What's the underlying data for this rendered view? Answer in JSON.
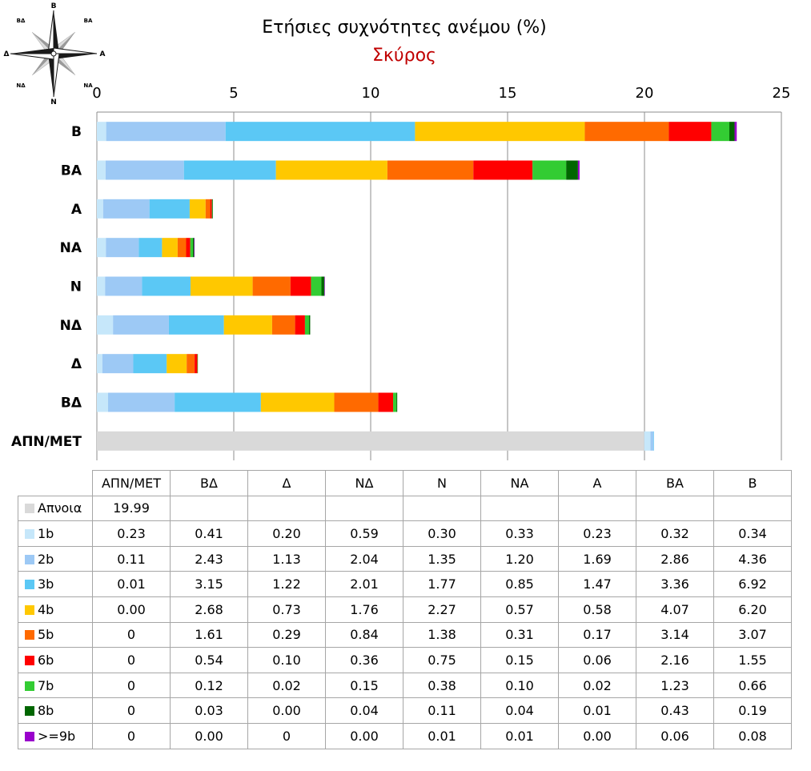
{
  "chart_data": {
    "type": "bar",
    "orientation": "horizontal",
    "stacked": true,
    "title": "Ετήσιες συχνότητες ανέμου (%)",
    "subtitle": "Σκύρος",
    "x_ticks": [
      "0",
      "5",
      "10",
      "15",
      "20",
      "25"
    ],
    "xlim": [
      0,
      25
    ],
    "grid": true,
    "categories": [
      "ΑΠΝ/ΜΕΤ",
      "ΒΔ",
      "Δ",
      "ΝΔ",
      "Ν",
      "ΝΑ",
      "Α",
      "ΒΑ",
      "Β"
    ],
    "series": [
      {
        "name": "Απνοια",
        "color": "#d9d9d9",
        "values": [
          19.99,
          null,
          null,
          null,
          null,
          null,
          null,
          null,
          null
        ],
        "labels": [
          "19.99",
          "",
          "",
          "",
          "",
          "",
          "",
          "",
          ""
        ]
      },
      {
        "name": "1b",
        "color": "#c6e7fa",
        "values": [
          0.23,
          0.41,
          0.2,
          0.59,
          0.3,
          0.33,
          0.23,
          0.32,
          0.34
        ],
        "labels": [
          "0.23",
          "0.41",
          "0.20",
          "0.59",
          "0.30",
          "0.33",
          "0.23",
          "0.32",
          "0.34"
        ]
      },
      {
        "name": "2b",
        "color": "#9dc9f5",
        "values": [
          0.11,
          2.43,
          1.13,
          2.04,
          1.35,
          1.2,
          1.69,
          2.86,
          4.36
        ],
        "labels": [
          "0.11",
          "2.43",
          "1.13",
          "2.04",
          "1.35",
          "1.20",
          "1.69",
          "2.86",
          "4.36"
        ]
      },
      {
        "name": "3b",
        "color": "#5bc8f5",
        "values": [
          0.01,
          3.15,
          1.22,
          2.01,
          1.77,
          0.85,
          1.47,
          3.36,
          6.92
        ],
        "labels": [
          "0.01",
          "3.15",
          "1.22",
          "2.01",
          "1.77",
          "0.85",
          "1.47",
          "3.36",
          "6.92"
        ]
      },
      {
        "name": "4b",
        "color": "#ffc800",
        "values": [
          0.0,
          2.68,
          0.73,
          1.76,
          2.27,
          0.57,
          0.58,
          4.07,
          6.2
        ],
        "labels": [
          "0.00",
          "2.68",
          "0.73",
          "1.76",
          "2.27",
          "0.57",
          "0.58",
          "4.07",
          "6.20"
        ]
      },
      {
        "name": "5b",
        "color": "#ff6a00",
        "values": [
          0,
          1.61,
          0.29,
          0.84,
          1.38,
          0.31,
          0.17,
          3.14,
          3.07
        ],
        "labels": [
          "0",
          "1.61",
          "0.29",
          "0.84",
          "1.38",
          "0.31",
          "0.17",
          "3.14",
          "3.07"
        ]
      },
      {
        "name": "6b",
        "color": "#ff0000",
        "values": [
          0,
          0.54,
          0.1,
          0.36,
          0.75,
          0.15,
          0.06,
          2.16,
          1.55
        ],
        "labels": [
          "0",
          "0.54",
          "0.10",
          "0.36",
          "0.75",
          "0.15",
          "0.06",
          "2.16",
          "1.55"
        ]
      },
      {
        "name": "7b",
        "color": "#33cc33",
        "values": [
          0,
          0.12,
          0.02,
          0.15,
          0.38,
          0.1,
          0.02,
          1.23,
          0.66
        ],
        "labels": [
          "0",
          "0.12",
          "0.02",
          "0.15",
          "0.38",
          "0.10",
          "0.02",
          "1.23",
          "0.66"
        ]
      },
      {
        "name": "8b",
        "color": "#006600",
        "values": [
          0,
          0.03,
          0.0,
          0.04,
          0.11,
          0.04,
          0.01,
          0.43,
          0.19
        ],
        "labels": [
          "0",
          "0.03",
          "0.00",
          "0.04",
          "0.11",
          "0.04",
          "0.01",
          "0.43",
          "0.19"
        ]
      },
      {
        "name": ">=9b",
        "color": "#9900cc",
        "values": [
          0,
          0.0,
          0,
          0.0,
          0.01,
          0.01,
          0.0,
          0.06,
          0.08
        ],
        "labels": [
          "0",
          "0.00",
          "0",
          "0.00",
          "0.01",
          "0.01",
          "0.00",
          "0.06",
          "0.08"
        ]
      }
    ]
  },
  "compass": {
    "labels": {
      "n": "Β",
      "ne": "ΒΑ",
      "e": "Α",
      "se": "ΝΑ",
      "s": "Ν",
      "sw": "ΝΔ",
      "w": "Δ",
      "nw": "ΒΔ"
    },
    "colors": {
      "dark": "#1a1a1a",
      "light": "#9a9a9a"
    }
  }
}
